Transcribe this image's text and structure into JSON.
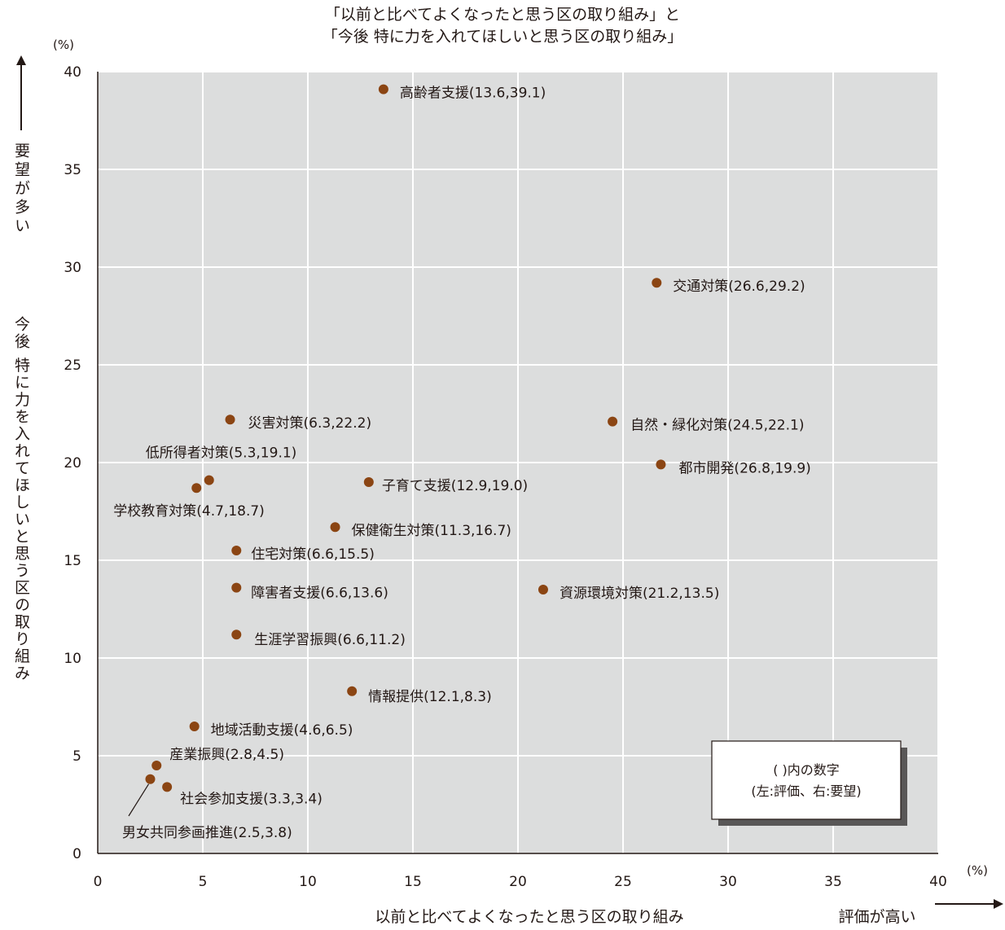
{
  "chart_data": {
    "type": "scatter",
    "title": [
      "「以前と比べてよくなったと思う区の取り組み」と",
      "「今後 特に力を入れてほしいと思う区の取り組み」"
    ],
    "xlabel": "以前と比べてよくなったと思う区の取り組み",
    "xlabel_arrow": "評価が高い",
    "ylabel_top": "要望が多い",
    "ylabel": "今後 特に力を入れてほしいと思う区の取り組み",
    "x_unit": "(%)",
    "y_unit": "(%)",
    "xlim": [
      0,
      40
    ],
    "ylim": [
      0,
      40
    ],
    "x_ticks": [
      0,
      5,
      10,
      15,
      20,
      25,
      30,
      35,
      40
    ],
    "y_ticks": [
      0,
      5,
      10,
      15,
      20,
      25,
      30,
      35,
      40
    ],
    "grid": true,
    "background": "#dcdddd",
    "point_color": "#8b4513",
    "legend_box": [
      "( )内の数字",
      "(左:評価、右:要望)"
    ],
    "points": [
      {
        "label": "高齢者支援(13.6,39.1)",
        "x": 13.6,
        "y": 39.1
      },
      {
        "label": "交通対策(26.6,29.2)",
        "x": 26.6,
        "y": 29.2
      },
      {
        "label": "災害対策(6.3,22.2)",
        "x": 6.3,
        "y": 22.2
      },
      {
        "label": "自然・緑化対策(24.5,22.1)",
        "x": 24.5,
        "y": 22.1
      },
      {
        "label": "都市開発(26.8,19.9)",
        "x": 26.8,
        "y": 19.9
      },
      {
        "label": "低所得者対策(5.3,19.1)",
        "x": 5.3,
        "y": 19.1
      },
      {
        "label": "子育て支援(12.9,19.0)",
        "x": 12.9,
        "y": 19.0
      },
      {
        "label": "学校教育対策(4.7,18.7)",
        "x": 4.7,
        "y": 18.7
      },
      {
        "label": "保健衛生対策(11.3,16.7)",
        "x": 11.3,
        "y": 16.7
      },
      {
        "label": "住宅対策(6.6,15.5)",
        "x": 6.6,
        "y": 15.5
      },
      {
        "label": "障害者支援(6.6,13.6)",
        "x": 6.6,
        "y": 13.6
      },
      {
        "label": "資源環境対策(21.2,13.5)",
        "x": 21.2,
        "y": 13.5
      },
      {
        "label": "生涯学習振興(6.6,11.2)",
        "x": 6.6,
        "y": 11.2
      },
      {
        "label": "情報提供(12.1,8.3)",
        "x": 12.1,
        "y": 8.3
      },
      {
        "label": "地域活動支援(4.6,6.5)",
        "x": 4.6,
        "y": 6.5
      },
      {
        "label": "産業振興(2.8,4.5)",
        "x": 2.8,
        "y": 4.5
      },
      {
        "label": "社会参加支援(3.3,3.4)",
        "x": 3.3,
        "y": 3.4
      },
      {
        "label": "男女共同参画推進(2.5,3.8)",
        "x": 2.5,
        "y": 3.8
      }
    ]
  }
}
